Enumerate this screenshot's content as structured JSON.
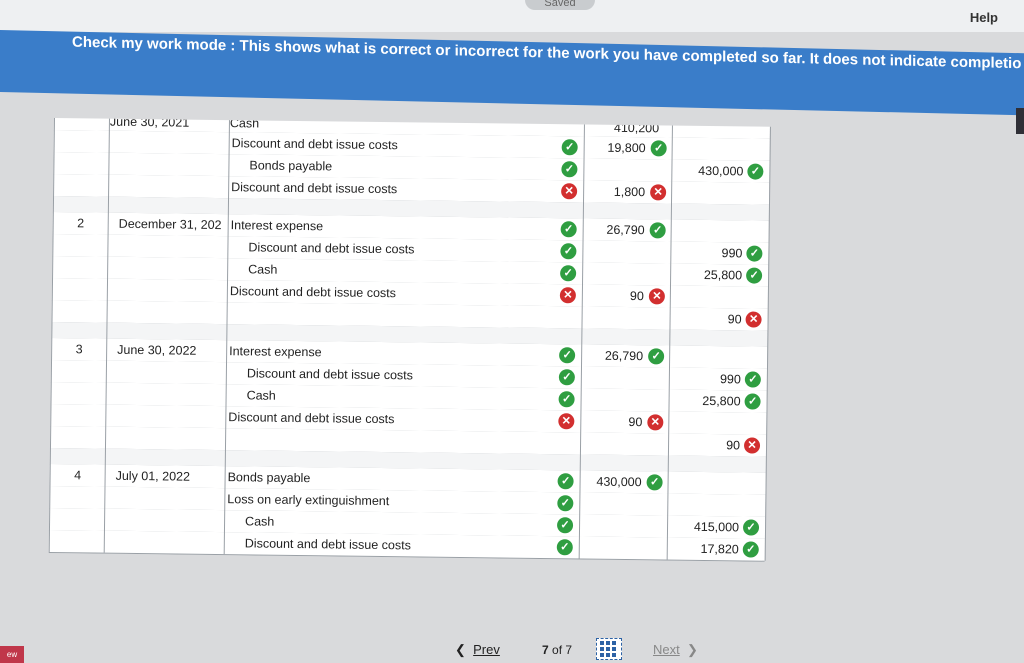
{
  "header": {
    "saved": "Saved",
    "help": "Help"
  },
  "banner": {
    "text": "Check my work mode : This shows what is correct or incorrect for the work you have completed so far. It does not indicate completio"
  },
  "table": {
    "top_partial": {
      "date": "June 30, 2021",
      "account": "Cash",
      "debit": "410,200"
    },
    "entries": [
      {
        "no": "",
        "date": "",
        "lines": [
          {
            "account": "Discount and debt issue costs",
            "status": "ok",
            "debit": "19,800",
            "debit_status": "ok",
            "credit": "",
            "credit_status": ""
          },
          {
            "account": "Bonds payable",
            "status": "ok",
            "debit": "",
            "debit_status": "",
            "credit": "430,000",
            "credit_status": "ok"
          },
          {
            "account": "Discount and debt issue costs",
            "status": "bad",
            "debit": "1,800",
            "debit_status": "bad",
            "credit": "",
            "credit_status": ""
          }
        ]
      },
      {
        "no": "2",
        "date": "December 31, 202",
        "lines": [
          {
            "account": "Interest expense",
            "status": "ok",
            "debit": "26,790",
            "debit_status": "ok",
            "credit": "",
            "credit_status": ""
          },
          {
            "account": "Discount and debt issue costs",
            "status": "ok",
            "debit": "",
            "debit_status": "",
            "credit": "990",
            "credit_status": "ok"
          },
          {
            "account": "Cash",
            "status": "ok",
            "debit": "",
            "debit_status": "",
            "credit": "25,800",
            "credit_status": "ok"
          },
          {
            "account": "Discount and debt issue costs",
            "status": "bad",
            "debit": "90",
            "debit_status": "bad",
            "credit": "",
            "credit_status": ""
          },
          {
            "account": "",
            "status": "",
            "debit": "",
            "debit_status": "",
            "credit": "90",
            "credit_status": "bad"
          }
        ]
      },
      {
        "no": "3",
        "date": "June 30, 2022",
        "lines": [
          {
            "account": "Interest expense",
            "status": "ok",
            "debit": "26,790",
            "debit_status": "ok",
            "credit": "",
            "credit_status": ""
          },
          {
            "account": "Discount and debt issue costs",
            "status": "ok",
            "debit": "",
            "debit_status": "",
            "credit": "990",
            "credit_status": "ok"
          },
          {
            "account": "Cash",
            "status": "ok",
            "debit": "",
            "debit_status": "",
            "credit": "25,800",
            "credit_status": "ok"
          },
          {
            "account": "Discount and debt issue costs",
            "status": "bad",
            "debit": "90",
            "debit_status": "bad",
            "credit": "",
            "credit_status": ""
          },
          {
            "account": "",
            "status": "",
            "debit": "",
            "debit_status": "",
            "credit": "90",
            "credit_status": "bad"
          }
        ]
      },
      {
        "no": "4",
        "date": "July 01, 2022",
        "lines": [
          {
            "account": "Bonds payable",
            "status": "ok",
            "debit": "430,000",
            "debit_status": "ok",
            "credit": "",
            "credit_status": ""
          },
          {
            "account": "Loss on early extinguishment",
            "status": "ok",
            "debit": "",
            "debit_status": "",
            "credit": "",
            "credit_status": ""
          },
          {
            "account": "Cash",
            "status": "ok",
            "debit": "",
            "debit_status": "",
            "credit": "415,000",
            "credit_status": "ok"
          },
          {
            "account": "Discount and debt issue costs",
            "status": "ok",
            "debit": "",
            "debit_status": "",
            "credit": "17,820",
            "credit_status": "ok"
          }
        ]
      }
    ]
  },
  "pagination": {
    "prev": "Prev",
    "page": "7",
    "of": "of",
    "total": "7",
    "next": "Next"
  },
  "corner": "ew"
}
